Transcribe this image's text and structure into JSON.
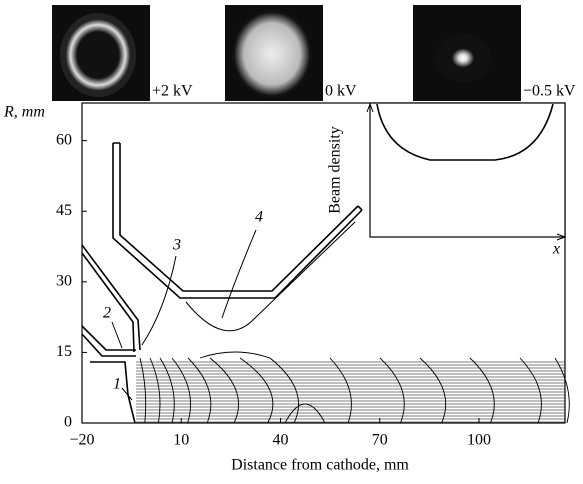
{
  "figure": {
    "images": [
      {
        "label": "+2 kV"
      },
      {
        "label": "0 kV"
      },
      {
        "label": "−0.5 kV"
      }
    ],
    "axes": {
      "ylabel": "R, mm",
      "xlabel": "Distance from cathode, mm",
      "xlim": [
        -20,
        126
      ],
      "ylim": [
        0,
        68
      ],
      "xticks": [
        {
          "value": -20,
          "label": "−20"
        },
        10,
        40,
        70,
        100
      ],
      "yticks": [
        0,
        15,
        30,
        45,
        60
      ]
    },
    "electrode_labels": [
      "1",
      "2",
      "3",
      "4"
    ],
    "inset": {
      "ylabel": "Beam density",
      "xlabel": "x"
    }
  }
}
